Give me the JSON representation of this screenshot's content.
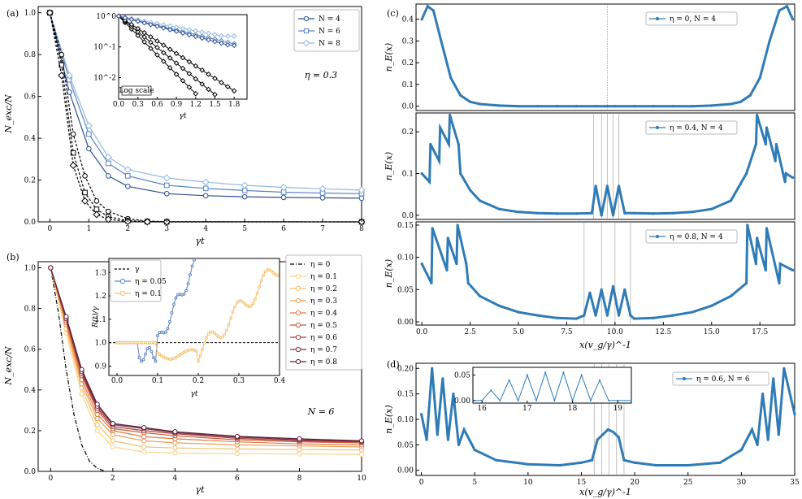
{
  "panels": [
    {
      "id": "a",
      "label": "(a)",
      "annotation": "η = 0.3",
      "xlabel": "γt",
      "ylabel": "N_exc/N",
      "xticks": [
        "0",
        "1",
        "2",
        "3",
        "4",
        "5",
        "6",
        "7",
        "8"
      ],
      "yticks": [
        "0.0",
        "0.2",
        "0.4",
        "0.6",
        "0.8",
        "1.0"
      ],
      "legend": [
        "N = 4",
        "N = 6",
        "N = 8"
      ],
      "inset": {
        "xlabel": "γt",
        "note": "Log scale",
        "xticks": [
          "0.0",
          "0.3",
          "0.6",
          "0.9",
          "1.2",
          "1.5",
          "1.8"
        ],
        "yticks": [
          "10^0",
          "10^-1",
          "10^-2"
        ]
      }
    },
    {
      "id": "b",
      "label": "(b)",
      "annotation": "N = 6",
      "xlabel": "γt",
      "ylabel": "N_exc/N",
      "xticks": [
        "0",
        "2",
        "4",
        "6",
        "8",
        "10"
      ],
      "yticks": [
        "0.0",
        "0.2",
        "0.4",
        "0.6",
        "0.8",
        "1.0"
      ],
      "legend": [
        "η = 0",
        "η = 0.1",
        "η = 0.2",
        "η = 0.3",
        "η = 0.4",
        "η = 0.5",
        "η = 0.6",
        "η = 0.7",
        "η = 0.8"
      ],
      "inset": {
        "xlabel": "γt",
        "ylabel": "R(t)/γ",
        "xticks": [
          "0.0",
          "0.1",
          "0.2",
          "0.3",
          "0.4"
        ],
        "yticks": [
          "0.9",
          "1.0",
          "1.1",
          "1.2",
          "1.3"
        ],
        "legend": [
          "γ",
          "η = 0.05",
          "η = 0.1"
        ]
      }
    },
    {
      "id": "c",
      "label": "(c)",
      "xlabel": "x(v_g/γ)^-1",
      "ylabel": "n_E(x)",
      "xticks": [
        "0.0",
        "2.5",
        "5.0",
        "7.5",
        "10.0",
        "12.5",
        "15.0",
        "17.5"
      ],
      "subpanels": [
        {
          "legend": "η = 0, N = 4",
          "yticks": [
            "0.0",
            "0.1",
            "0.2",
            "0.3",
            "0.4"
          ]
        },
        {
          "legend": "η = 0.4, N = 4",
          "yticks": [
            "0.0",
            "0.1",
            "0.2"
          ]
        },
        {
          "legend": "η = 0.8, N = 4",
          "yticks": [
            "0.00",
            "0.05",
            "0.10",
            "0.15"
          ]
        }
      ]
    },
    {
      "id": "d",
      "label": "(d)",
      "xlabel": "x(v_g/γ)^-1",
      "ylabel": "n_E(x)",
      "legend": "η = 0.6, N = 6",
      "xticks": [
        "0",
        "5",
        "10",
        "15",
        "20",
        "25",
        "30",
        "35"
      ],
      "yticks": [
        "0.00",
        "0.05",
        "0.10",
        "0.15",
        "0.20"
      ],
      "inset": {
        "xticks": [
          "16",
          "17",
          "18",
          "19"
        ],
        "yticks": [
          "0.00",
          "0.05"
        ]
      }
    }
  ],
  "chart_data": [
    {
      "panel": "a",
      "type": "line",
      "xlim": [
        -0.3,
        8
      ],
      "ylim": [
        0,
        1.03
      ],
      "series": [
        {
          "name": "N = 4",
          "color": "#2c4f93",
          "marker": "circle",
          "x": [
            0,
            0.5,
            1,
            1.5,
            2,
            3,
            4,
            5,
            6,
            7,
            8
          ],
          "y": [
            1.0,
            0.62,
            0.35,
            0.22,
            0.17,
            0.135,
            0.125,
            0.12,
            0.117,
            0.115,
            0.113
          ]
        },
        {
          "name": "N = 6",
          "color": "#5a82c0",
          "marker": "square",
          "x": [
            0,
            0.5,
            1,
            1.5,
            2,
            3,
            4,
            5,
            6,
            7,
            8
          ],
          "y": [
            1.0,
            0.68,
            0.42,
            0.28,
            0.22,
            0.175,
            0.16,
            0.15,
            0.142,
            0.138,
            0.135
          ]
        },
        {
          "name": "N = 8",
          "color": "#92b8e0",
          "marker": "diamond",
          "x": [
            0,
            0.5,
            1,
            1.5,
            2,
            3,
            4,
            5,
            6,
            7,
            8
          ],
          "y": [
            1.0,
            0.7,
            0.46,
            0.31,
            0.25,
            0.21,
            0.19,
            0.175,
            0.165,
            0.158,
            0.152
          ]
        },
        {
          "name": "",
          "color": "#000",
          "marker": "circle",
          "x": [
            0,
            0.3,
            0.6,
            0.9,
            1.2,
            1.5,
            2,
            2.5,
            3,
            8
          ],
          "y": [
            1.0,
            0.8,
            0.42,
            0.22,
            0.1,
            0.05,
            0.015,
            0.004,
            0.001,
            0
          ]
        },
        {
          "name": "",
          "color": "#000",
          "marker": "square",
          "x": [
            0,
            0.3,
            0.6,
            0.9,
            1.2,
            1.5,
            2,
            2.5,
            3,
            8
          ],
          "y": [
            1.0,
            0.75,
            0.33,
            0.14,
            0.06,
            0.025,
            0.006,
            0.001,
            0,
            0
          ]
        },
        {
          "name": "",
          "color": "#000",
          "marker": "diamond",
          "x": [
            0,
            0.3,
            0.6,
            0.9,
            1.2,
            1.5,
            2,
            2.5,
            3,
            8
          ],
          "y": [
            1.0,
            0.7,
            0.27,
            0.1,
            0.035,
            0.012,
            0.002,
            0,
            0,
            0
          ]
        }
      ]
    },
    {
      "panel": "b",
      "type": "line",
      "xlim": [
        -0.4,
        10
      ],
      "ylim": [
        0,
        1.03
      ],
      "series": [
        {
          "name": "η = 0",
          "color": "#000",
          "x": [
            0,
            0.25,
            0.5,
            0.75,
            1,
            1.25,
            1.5,
            1.75
          ],
          "y": [
            1.0,
            0.78,
            0.5,
            0.28,
            0.13,
            0.05,
            0.015,
            0.0
          ]
        },
        {
          "name": "η = 0.1",
          "color": "#f8d58a",
          "x": [
            0,
            0.5,
            1,
            1.5,
            2,
            3,
            4,
            6,
            8,
            10
          ],
          "y": [
            1.0,
            0.68,
            0.38,
            0.2,
            0.12,
            0.095,
            0.09,
            0.087,
            0.085,
            0.084
          ]
        },
        {
          "name": "η = 0.2",
          "color": "#f5c06d",
          "x": [
            0,
            0.5,
            1,
            1.5,
            2,
            3,
            4,
            6,
            8,
            10
          ],
          "y": [
            1.0,
            0.7,
            0.41,
            0.23,
            0.15,
            0.12,
            0.115,
            0.11,
            0.107,
            0.105
          ]
        },
        {
          "name": "η = 0.3",
          "color": "#ef9f57",
          "x": [
            0,
            0.5,
            1,
            1.5,
            2,
            3,
            4,
            6,
            8,
            10
          ],
          "y": [
            1.0,
            0.72,
            0.43,
            0.26,
            0.18,
            0.15,
            0.14,
            0.13,
            0.125,
            0.12
          ]
        },
        {
          "name": "η = 0.4",
          "color": "#e37b46",
          "x": [
            0,
            0.5,
            1,
            1.5,
            2,
            3,
            4,
            6,
            8,
            10
          ],
          "y": [
            1.0,
            0.73,
            0.45,
            0.28,
            0.2,
            0.17,
            0.16,
            0.145,
            0.135,
            0.13
          ]
        },
        {
          "name": "η = 0.5",
          "color": "#c95a3a",
          "x": [
            0,
            0.5,
            1,
            1.5,
            2,
            3,
            4,
            6,
            8,
            10
          ],
          "y": [
            1.0,
            0.74,
            0.47,
            0.3,
            0.21,
            0.19,
            0.175,
            0.155,
            0.145,
            0.14
          ]
        },
        {
          "name": "η = 0.6",
          "color": "#a63f37",
          "x": [
            0,
            0.5,
            1,
            1.5,
            2,
            3,
            4,
            6,
            8,
            10
          ],
          "y": [
            1.0,
            0.75,
            0.48,
            0.31,
            0.22,
            0.2,
            0.185,
            0.162,
            0.15,
            0.145
          ]
        },
        {
          "name": "η = 0.7",
          "color": "#7f2c3d",
          "x": [
            0,
            0.5,
            1,
            1.5,
            2,
            3,
            4,
            6,
            8,
            10
          ],
          "y": [
            1.0,
            0.75,
            0.49,
            0.32,
            0.23,
            0.21,
            0.19,
            0.168,
            0.155,
            0.148
          ]
        },
        {
          "name": "η = 0.8",
          "color": "#5a1f3e",
          "x": [
            0,
            0.5,
            1,
            1.5,
            2,
            3,
            4,
            6,
            8,
            10
          ],
          "y": [
            1.0,
            0.76,
            0.5,
            0.33,
            0.235,
            0.215,
            0.195,
            0.172,
            0.16,
            0.15
          ]
        }
      ]
    },
    {
      "panel": "c",
      "type": "line",
      "subpanels": [
        {
          "xlim": [
            -0.3,
            19.3
          ],
          "ylim": [
            -0.02,
            0.47
          ],
          "x": [
            0,
            0.3,
            0.6,
            1,
            1.5,
            2,
            2.5,
            3,
            4,
            5,
            6,
            7,
            8,
            9,
            9.6,
            10,
            11,
            12,
            13,
            14,
            15,
            16,
            16.5,
            17,
            17.5,
            18,
            18.5,
            18.9,
            19.2
          ],
          "y": [
            0.4,
            0.46,
            0.44,
            0.3,
            0.13,
            0.05,
            0.02,
            0.01,
            0.003,
            0,
            0,
            0,
            0,
            0,
            0,
            0,
            0,
            0,
            0,
            0,
            0.003,
            0.01,
            0.02,
            0.05,
            0.13,
            0.3,
            0.44,
            0.46,
            0.4
          ]
        },
        {
          "xlim": [
            -0.3,
            19.3
          ],
          "ylim": [
            -0.01,
            0.245
          ],
          "x": [
            0,
            0.4,
            0.45,
            0.9,
            0.95,
            1.4,
            1.45,
            1.9,
            2.0,
            2.5,
            3,
            4,
            5,
            6,
            7,
            8,
            8.8,
            9.0,
            9.3,
            9.6,
            9.9,
            10.2,
            10.5,
            11,
            12,
            13,
            14,
            15,
            16,
            16.8,
            17.3,
            17.35,
            17.8,
            17.85,
            18.3,
            18.35,
            18.8,
            18.85,
            19.2
          ],
          "y": [
            0.1,
            0.08,
            0.17,
            0.13,
            0.21,
            0.17,
            0.24,
            0.17,
            0.1,
            0.06,
            0.035,
            0.015,
            0.008,
            0.005,
            0.004,
            0.004,
            0.005,
            0.07,
            0.0,
            0.07,
            0.0,
            0.07,
            0.005,
            0.005,
            0.004,
            0.005,
            0.008,
            0.015,
            0.035,
            0.1,
            0.17,
            0.24,
            0.17,
            0.21,
            0.13,
            0.17,
            0.08,
            0.1,
            0.09
          ]
        },
        {
          "xlim": [
            -0.3,
            19.3
          ],
          "ylim": [
            -0.005,
            0.155
          ],
          "x": [
            0,
            0.5,
            0.55,
            1.3,
            1.35,
            1.8,
            1.85,
            2.3,
            2.4,
            3,
            4,
            5,
            6,
            7,
            8,
            8.4,
            8.7,
            9.0,
            9.3,
            9.6,
            9.9,
            10.2,
            10.5,
            10.8,
            11,
            12,
            13,
            14,
            15,
            16,
            16.8,
            16.85,
            17.3,
            17.35,
            17.8,
            17.85,
            18.5,
            18.55,
            19.2
          ],
          "y": [
            0.09,
            0.06,
            0.145,
            0.08,
            0.13,
            0.09,
            0.15,
            0.09,
            0.06,
            0.04,
            0.025,
            0.015,
            0.01,
            0.006,
            0.005,
            0.01,
            0.045,
            0.01,
            0.05,
            0.01,
            0.055,
            0.01,
            0.05,
            0.01,
            0.005,
            0.006,
            0.01,
            0.015,
            0.025,
            0.04,
            0.06,
            0.15,
            0.09,
            0.13,
            0.08,
            0.145,
            0.06,
            0.09,
            0.08
          ]
        }
      ]
    },
    {
      "panel": "d",
      "type": "line",
      "xlim": [
        -0.5,
        35
      ],
      "ylim": [
        -0.01,
        0.21
      ],
      "x": [
        0,
        0.5,
        1,
        1.5,
        2,
        2.5,
        3,
        3.5,
        4,
        5,
        7,
        10,
        13,
        15,
        16,
        16.5,
        17,
        17.5,
        18,
        18.5,
        19,
        20,
        22,
        25,
        28,
        30,
        31,
        31.5,
        32,
        32.5,
        33,
        33.5,
        34,
        35
      ],
      "y": [
        0.11,
        0.06,
        0.2,
        0.07,
        0.18,
        0.06,
        0.15,
        0.05,
        0.08,
        0.04,
        0.02,
        0.012,
        0.01,
        0.015,
        0.02,
        0.06,
        0.07,
        0.08,
        0.075,
        0.065,
        0.02,
        0.015,
        0.01,
        0.01,
        0.015,
        0.04,
        0.08,
        0.05,
        0.15,
        0.06,
        0.18,
        0.07,
        0.2,
        0.11
      ],
      "inset": {
        "xlim": [
          15.8,
          19.3
        ],
        "ylim": [
          -0.005,
          0.065
        ],
        "x": [
          15.8,
          16.0,
          16.2,
          16.4,
          16.6,
          16.8,
          17.0,
          17.2,
          17.4,
          17.6,
          17.8,
          18.0,
          18.2,
          18.4,
          18.6,
          18.8,
          19.0,
          19.3
        ],
        "y": [
          0,
          0,
          0.02,
          0,
          0.04,
          0,
          0.05,
          0,
          0.055,
          0,
          0.055,
          0,
          0.05,
          0,
          0.04,
          0,
          0,
          0
        ]
      }
    }
  ]
}
